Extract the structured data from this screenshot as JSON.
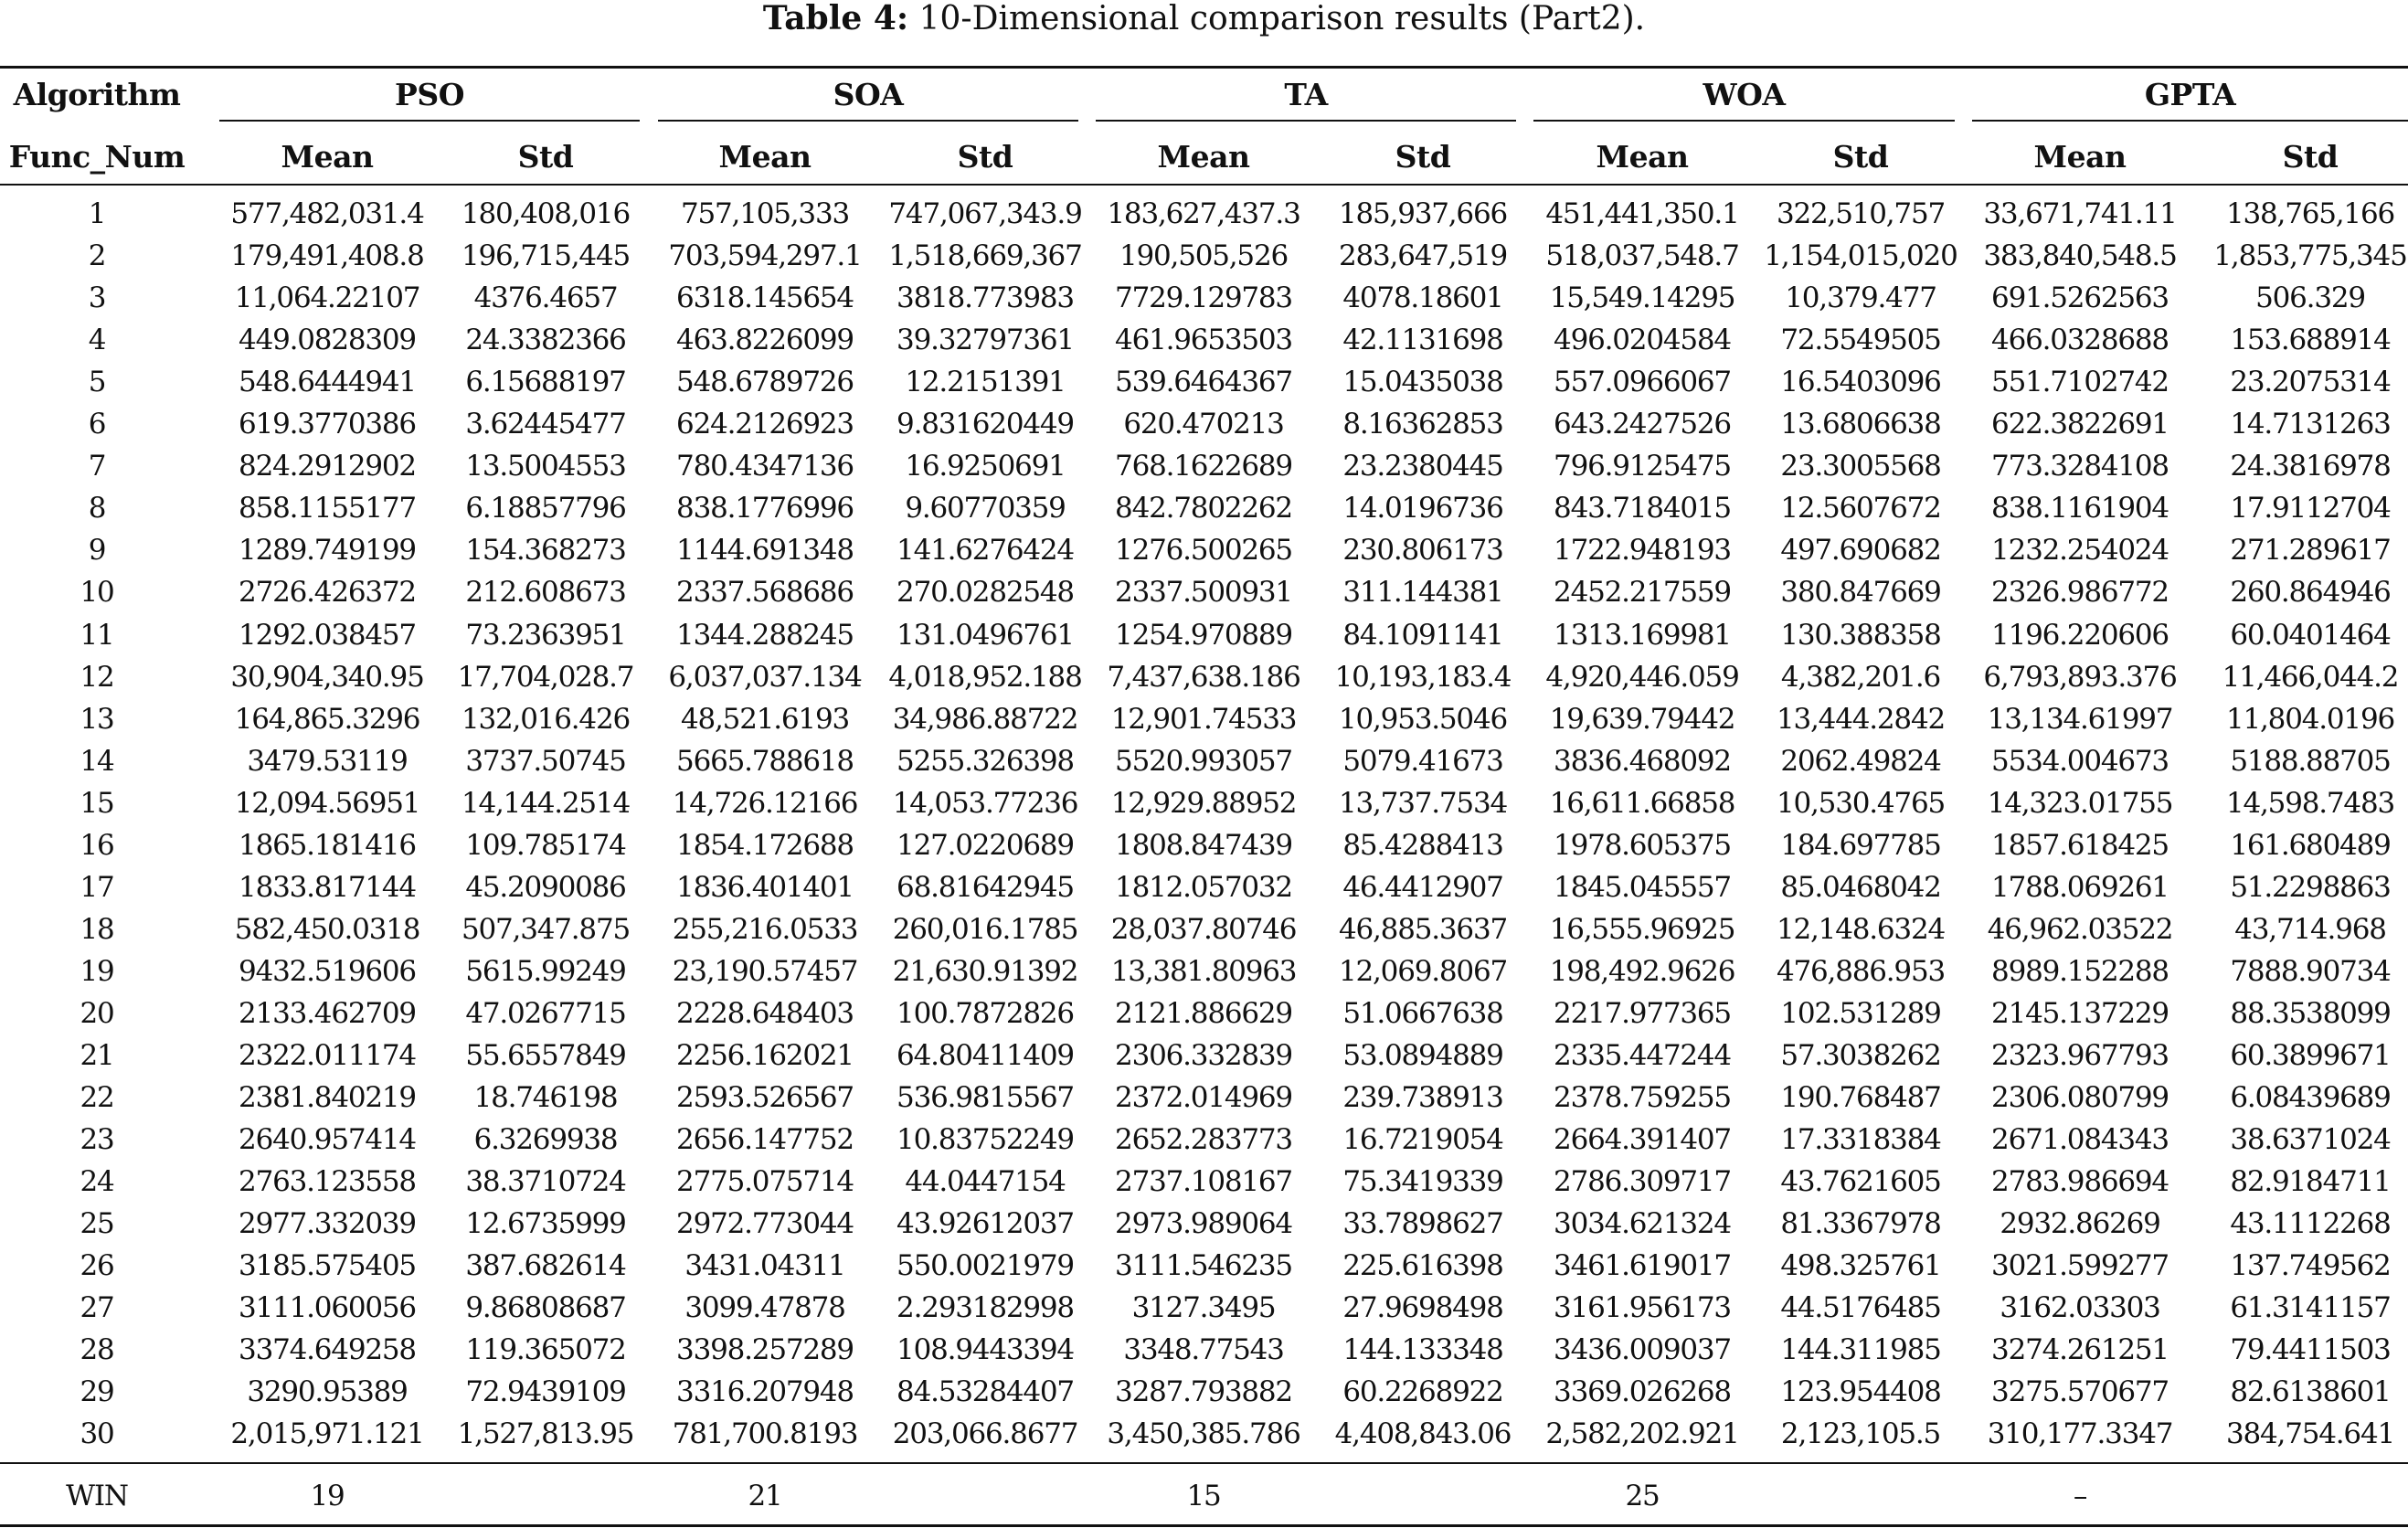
{
  "caption": {
    "label": "Table 4:",
    "text": "10-Dimensional comparison results (Part2)."
  },
  "header": {
    "algorithm_label": "Algorithm",
    "func_label": "Func_Num",
    "groups": [
      "PSO",
      "SOA",
      "TA",
      "WOA",
      "GPTA"
    ],
    "sub": [
      "Mean",
      "Std",
      "Mean",
      "Std",
      "Mean",
      "Std",
      "Mean",
      "Std",
      "Mean",
      "Std"
    ]
  },
  "rows": [
    [
      "1",
      "577,482,031.4",
      "180,408,016",
      "757,105,333",
      "747,067,343.9",
      "183,627,437.3",
      "185,937,666",
      "451,441,350.1",
      "322,510,757",
      "33,671,741.11",
      "138,765,166"
    ],
    [
      "2",
      "179,491,408.8",
      "196,715,445",
      "703,594,297.1",
      "1,518,669,367",
      "190,505,526",
      "283,647,519",
      "518,037,548.7",
      "1,154,015,020",
      "383,840,548.5",
      "1,853,775,345"
    ],
    [
      "3",
      "11,064.22107",
      "4376.4657",
      "6318.145654",
      "3818.773983",
      "7729.129783",
      "4078.18601",
      "15,549.14295",
      "10,379.477",
      "691.5262563",
      "506.329"
    ],
    [
      "4",
      "449.0828309",
      "24.3382366",
      "463.8226099",
      "39.32797361",
      "461.9653503",
      "42.1131698",
      "496.0204584",
      "72.5549505",
      "466.0328688",
      "153.688914"
    ],
    [
      "5",
      "548.6444941",
      "6.15688197",
      "548.6789726",
      "12.2151391",
      "539.6464367",
      "15.0435038",
      "557.0966067",
      "16.5403096",
      "551.7102742",
      "23.2075314"
    ],
    [
      "6",
      "619.3770386",
      "3.62445477",
      "624.2126923",
      "9.831620449",
      "620.470213",
      "8.16362853",
      "643.2427526",
      "13.6806638",
      "622.3822691",
      "14.7131263"
    ],
    [
      "7",
      "824.2912902",
      "13.5004553",
      "780.4347136",
      "16.9250691",
      "768.1622689",
      "23.2380445",
      "796.9125475",
      "23.3005568",
      "773.3284108",
      "24.3816978"
    ],
    [
      "8",
      "858.1155177",
      "6.18857796",
      "838.1776996",
      "9.60770359",
      "842.7802262",
      "14.0196736",
      "843.7184015",
      "12.5607672",
      "838.1161904",
      "17.9112704"
    ],
    [
      "9",
      "1289.749199",
      "154.368273",
      "1144.691348",
      "141.6276424",
      "1276.500265",
      "230.806173",
      "1722.948193",
      "497.690682",
      "1232.254024",
      "271.289617"
    ],
    [
      "10",
      "2726.426372",
      "212.608673",
      "2337.568686",
      "270.0282548",
      "2337.500931",
      "311.144381",
      "2452.217559",
      "380.847669",
      "2326.986772",
      "260.864946"
    ],
    [
      "11",
      "1292.038457",
      "73.2363951",
      "1344.288245",
      "131.0496761",
      "1254.970889",
      "84.1091141",
      "1313.169981",
      "130.388358",
      "1196.220606",
      "60.0401464"
    ],
    [
      "12",
      "30,904,340.95",
      "17,704,028.7",
      "6,037,037.134",
      "4,018,952.188",
      "7,437,638.186",
      "10,193,183.4",
      "4,920,446.059",
      "4,382,201.6",
      "6,793,893.376",
      "11,466,044.2"
    ],
    [
      "13",
      "164,865.3296",
      "132,016.426",
      "48,521.6193",
      "34,986.88722",
      "12,901.74533",
      "10,953.5046",
      "19,639.79442",
      "13,444.2842",
      "13,134.61997",
      "11,804.0196"
    ],
    [
      "14",
      "3479.53119",
      "3737.50745",
      "5665.788618",
      "5255.326398",
      "5520.993057",
      "5079.41673",
      "3836.468092",
      "2062.49824",
      "5534.004673",
      "5188.88705"
    ],
    [
      "15",
      "12,094.56951",
      "14,144.2514",
      "14,726.12166",
      "14,053.77236",
      "12,929.88952",
      "13,737.7534",
      "16,611.66858",
      "10,530.4765",
      "14,323.01755",
      "14,598.7483"
    ],
    [
      "16",
      "1865.181416",
      "109.785174",
      "1854.172688",
      "127.0220689",
      "1808.847439",
      "85.4288413",
      "1978.605375",
      "184.697785",
      "1857.618425",
      "161.680489"
    ],
    [
      "17",
      "1833.817144",
      "45.2090086",
      "1836.401401",
      "68.81642945",
      "1812.057032",
      "46.4412907",
      "1845.045557",
      "85.0468042",
      "1788.069261",
      "51.2298863"
    ],
    [
      "18",
      "582,450.0318",
      "507,347.875",
      "255,216.0533",
      "260,016.1785",
      "28,037.80746",
      "46,885.3637",
      "16,555.96925",
      "12,148.6324",
      "46,962.03522",
      "43,714.968"
    ],
    [
      "19",
      "9432.519606",
      "5615.99249",
      "23,190.57457",
      "21,630.91392",
      "13,381.80963",
      "12,069.8067",
      "198,492.9626",
      "476,886.953",
      "8989.152288",
      "7888.90734"
    ],
    [
      "20",
      "2133.462709",
      "47.0267715",
      "2228.648403",
      "100.7872826",
      "2121.886629",
      "51.0667638",
      "2217.977365",
      "102.531289",
      "2145.137229",
      "88.3538099"
    ],
    [
      "21",
      "2322.011174",
      "55.6557849",
      "2256.162021",
      "64.80411409",
      "2306.332839",
      "53.0894889",
      "2335.447244",
      "57.3038262",
      "2323.967793",
      "60.3899671"
    ],
    [
      "22",
      "2381.840219",
      "18.746198",
      "2593.526567",
      "536.9815567",
      "2372.014969",
      "239.738913",
      "2378.759255",
      "190.768487",
      "2306.080799",
      "6.08439689"
    ],
    [
      "23",
      "2640.957414",
      "6.3269938",
      "2656.147752",
      "10.83752249",
      "2652.283773",
      "16.7219054",
      "2664.391407",
      "17.3318384",
      "2671.084343",
      "38.6371024"
    ],
    [
      "24",
      "2763.123558",
      "38.3710724",
      "2775.075714",
      "44.0447154",
      "2737.108167",
      "75.3419339",
      "2786.309717",
      "43.7621605",
      "2783.986694",
      "82.9184711"
    ],
    [
      "25",
      "2977.332039",
      "12.6735999",
      "2972.773044",
      "43.92612037",
      "2973.989064",
      "33.7898627",
      "3034.621324",
      "81.3367978",
      "2932.86269",
      "43.1112268"
    ],
    [
      "26",
      "3185.575405",
      "387.682614",
      "3431.04311",
      "550.0021979",
      "3111.546235",
      "225.616398",
      "3461.619017",
      "498.325761",
      "3021.599277",
      "137.749562"
    ],
    [
      "27",
      "3111.060056",
      "9.86808687",
      "3099.47878",
      "2.293182998",
      "3127.3495",
      "27.9698498",
      "3161.956173",
      "44.5176485",
      "3162.03303",
      "61.3141157"
    ],
    [
      "28",
      "3374.649258",
      "119.365072",
      "3398.257289",
      "108.9443394",
      "3348.77543",
      "144.133348",
      "3436.009037",
      "144.311985",
      "3274.261251",
      "79.4411503"
    ],
    [
      "29",
      "3290.95389",
      "72.9439109",
      "3316.207948",
      "84.53284407",
      "3287.793882",
      "60.2268922",
      "3369.026268",
      "123.954408",
      "3275.570677",
      "82.6138601"
    ],
    [
      "30",
      "2,015,971.121",
      "1,527,813.95",
      "781,700.8193",
      "203,066.8677",
      "3,450,385.786",
      "4,408,843.06",
      "2,582,202.921",
      "2,123,105.5",
      "310,177.3347",
      "384,754.641"
    ]
  ],
  "win": {
    "label": "WIN",
    "values": [
      "19",
      "21",
      "15",
      "25",
      "–"
    ]
  }
}
